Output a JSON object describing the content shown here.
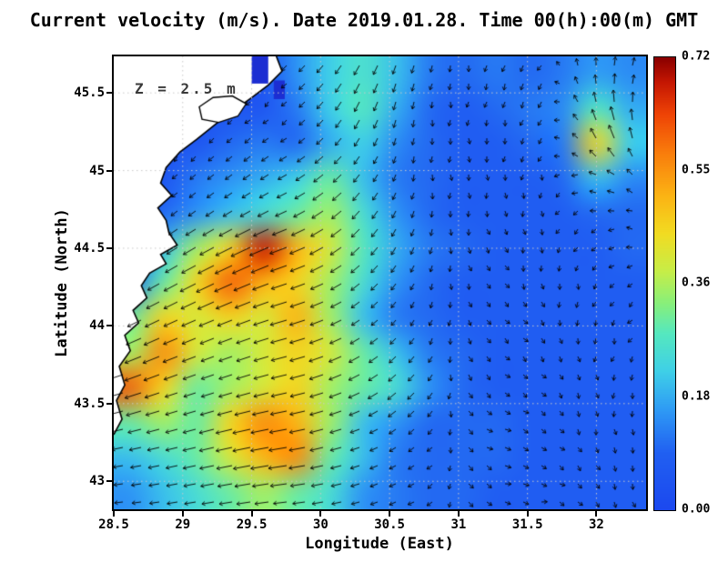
{
  "chart_data": {
    "type": "heatmap",
    "overlay": "quiver",
    "title": "Current velocity (m/s). Date 2019.01.28. Time 00(h):00(m) GMT",
    "xlabel": "Longitude (East)",
    "ylabel": "Latitude (North)",
    "units": "m/s",
    "depth_annotation": "Z = 2.5 m",
    "xlim": [
      28.5,
      32.36
    ],
    "ylim": [
      42.82,
      45.735
    ],
    "x_ticks": [
      28.5,
      29,
      29.5,
      30,
      30.5,
      31,
      31.5,
      32
    ],
    "x_tick_labels": [
      "28.5",
      "29",
      "29.5",
      "30",
      "30.5",
      "31",
      "31.5",
      "32"
    ],
    "y_ticks": [
      43,
      43.5,
      44,
      44.5,
      45,
      45.5
    ],
    "y_tick_labels": [
      "43",
      "43.5",
      "44",
      "44.5",
      "45",
      "45.5"
    ],
    "colorbar": {
      "min": 0.0,
      "max": 0.72,
      "tick_labels": [
        "0.00",
        "0.18",
        "0.36",
        "0.55",
        "0.72"
      ]
    },
    "colormap_stops": [
      {
        "v": 0.0,
        "c": "#1c49ef"
      },
      {
        "v": 0.09,
        "c": "#2160f2"
      },
      {
        "v": 0.16,
        "c": "#2f9cf5"
      },
      {
        "v": 0.22,
        "c": "#3fd0e8"
      },
      {
        "v": 0.28,
        "c": "#55e8c0"
      },
      {
        "v": 0.33,
        "c": "#8af07a"
      },
      {
        "v": 0.38,
        "c": "#c8ee48"
      },
      {
        "v": 0.44,
        "c": "#f2dc22"
      },
      {
        "v": 0.5,
        "c": "#fcb414"
      },
      {
        "v": 0.57,
        "c": "#f97c0c"
      },
      {
        "v": 0.63,
        "c": "#ef4406"
      },
      {
        "v": 0.68,
        "c": "#c61803"
      },
      {
        "v": 0.72,
        "c": "#8b0000"
      }
    ],
    "grid": {
      "nx": 16,
      "ny": 13,
      "lon_min": 28.5,
      "lon_max": 32.36,
      "lat_top": 45.735,
      "lat_bottom": 42.82,
      "magnitude_rows": [
        [
          0.05,
          0.05,
          0.05,
          0.05,
          0.05,
          0.15,
          0.22,
          0.26,
          0.2,
          0.12,
          0.1,
          0.12,
          0.1,
          0.12,
          0.16,
          0.14
        ],
        [
          0.05,
          0.05,
          0.05,
          0.05,
          0.05,
          0.12,
          0.22,
          0.28,
          0.18,
          0.1,
          0.08,
          0.1,
          0.12,
          0.14,
          0.28,
          0.18
        ],
        [
          0.05,
          0.05,
          0.05,
          0.1,
          0.12,
          0.1,
          0.18,
          0.22,
          0.14,
          0.1,
          0.08,
          0.08,
          0.1,
          0.12,
          0.45,
          0.22
        ],
        [
          0.05,
          0.05,
          0.12,
          0.15,
          0.18,
          0.22,
          0.3,
          0.2,
          0.12,
          0.1,
          0.08,
          0.08,
          0.08,
          0.1,
          0.2,
          0.14
        ],
        [
          0.05,
          0.1,
          0.15,
          0.2,
          0.25,
          0.3,
          0.35,
          0.25,
          0.15,
          0.1,
          0.08,
          0.08,
          0.08,
          0.08,
          0.1,
          0.1
        ],
        [
          0.08,
          0.2,
          0.35,
          0.45,
          0.68,
          0.5,
          0.4,
          0.28,
          0.18,
          0.12,
          0.1,
          0.08,
          0.08,
          0.08,
          0.08,
          0.1
        ],
        [
          0.1,
          0.3,
          0.45,
          0.6,
          0.5,
          0.45,
          0.35,
          0.25,
          0.15,
          0.1,
          0.08,
          0.08,
          0.08,
          0.08,
          0.08,
          0.08
        ],
        [
          0.3,
          0.45,
          0.4,
          0.45,
          0.4,
          0.5,
          0.35,
          0.2,
          0.12,
          0.1,
          0.08,
          0.08,
          0.08,
          0.08,
          0.08,
          0.08
        ],
        [
          0.35,
          0.55,
          0.4,
          0.35,
          0.4,
          0.45,
          0.4,
          0.3,
          0.2,
          0.12,
          0.1,
          0.08,
          0.08,
          0.08,
          0.08,
          0.08
        ],
        [
          0.6,
          0.45,
          0.3,
          0.35,
          0.4,
          0.45,
          0.35,
          0.3,
          0.25,
          0.15,
          0.1,
          0.08,
          0.08,
          0.08,
          0.08,
          0.08
        ],
        [
          0.3,
          0.35,
          0.3,
          0.45,
          0.55,
          0.5,
          0.35,
          0.2,
          0.15,
          0.1,
          0.1,
          0.1,
          0.08,
          0.08,
          0.08,
          0.08
        ],
        [
          0.2,
          0.25,
          0.3,
          0.4,
          0.5,
          0.55,
          0.3,
          0.2,
          0.12,
          0.1,
          0.1,
          0.1,
          0.08,
          0.08,
          0.08,
          0.08
        ],
        [
          0.15,
          0.2,
          0.25,
          0.3,
          0.35,
          0.3,
          0.25,
          0.15,
          0.12,
          0.1,
          0.1,
          0.08,
          0.08,
          0.08,
          0.08,
          0.08
        ]
      ],
      "direction_deg_rows": [
        [
          240,
          240,
          240,
          235,
          230,
          225,
          230,
          240,
          250,
          255,
          260,
          250,
          240,
          100,
          80,
          70
        ],
        [
          235,
          235,
          235,
          230,
          225,
          220,
          230,
          245,
          255,
          260,
          265,
          255,
          245,
          120,
          90,
          75
        ],
        [
          230,
          230,
          230,
          225,
          220,
          215,
          225,
          240,
          255,
          265,
          270,
          260,
          250,
          140,
          110,
          90
        ],
        [
          225,
          225,
          222,
          218,
          215,
          210,
          220,
          235,
          250,
          265,
          275,
          270,
          260,
          180,
          150,
          120
        ],
        [
          220,
          220,
          218,
          214,
          210,
          205,
          215,
          230,
          245,
          260,
          280,
          280,
          270,
          210,
          180,
          150
        ],
        [
          215,
          215,
          212,
          208,
          205,
          200,
          210,
          225,
          240,
          255,
          285,
          290,
          280,
          240,
          210,
          180
        ],
        [
          210,
          210,
          208,
          205,
          202,
          198,
          205,
          220,
          235,
          250,
          290,
          300,
          290,
          260,
          230,
          200
        ],
        [
          205,
          206,
          204,
          202,
          200,
          196,
          202,
          215,
          230,
          245,
          295,
          310,
          300,
          270,
          250,
          220
        ],
        [
          200,
          202,
          201,
          200,
          198,
          194,
          200,
          210,
          225,
          240,
          300,
          320,
          310,
          280,
          260,
          240
        ],
        [
          196,
          198,
          198,
          197,
          195,
          192,
          198,
          205,
          220,
          235,
          305,
          330,
          320,
          290,
          270,
          250
        ],
        [
          192,
          194,
          195,
          194,
          192,
          190,
          195,
          200,
          215,
          230,
          310,
          340,
          330,
          300,
          280,
          260
        ],
        [
          188,
          190,
          192,
          191,
          190,
          188,
          192,
          198,
          210,
          225,
          315,
          350,
          340,
          310,
          290,
          270
        ],
        [
          185,
          187,
          189,
          189,
          188,
          186,
          190,
          195,
          205,
          220,
          320,
          355,
          350,
          320,
          300,
          280
        ]
      ]
    },
    "coastline": [
      [
        29.66,
        45.78
      ],
      [
        29.72,
        45.64
      ],
      [
        29.62,
        45.55
      ],
      [
        29.5,
        45.47
      ],
      [
        29.36,
        45.38
      ],
      [
        29.24,
        45.3
      ],
      [
        29.1,
        45.2
      ],
      [
        28.98,
        45.12
      ],
      [
        28.88,
        45.02
      ],
      [
        28.84,
        44.92
      ],
      [
        28.92,
        44.84
      ],
      [
        28.82,
        44.76
      ],
      [
        28.88,
        44.68
      ],
      [
        28.9,
        44.6
      ],
      [
        28.96,
        44.52
      ],
      [
        28.84,
        44.46
      ],
      [
        28.88,
        44.4
      ],
      [
        28.76,
        44.34
      ],
      [
        28.7,
        44.26
      ],
      [
        28.74,
        44.18
      ],
      [
        28.64,
        44.1
      ],
      [
        28.68,
        44.02
      ],
      [
        28.58,
        43.94
      ],
      [
        28.62,
        43.84
      ],
      [
        28.54,
        43.74
      ],
      [
        28.58,
        43.62
      ],
      [
        28.52,
        43.52
      ],
      [
        28.56,
        43.4
      ],
      [
        28.5,
        43.3
      ]
    ],
    "lagoon_outline": [
      [
        29.12,
        45.41
      ],
      [
        29.22,
        45.47
      ],
      [
        29.36,
        45.48
      ],
      [
        29.46,
        45.43
      ],
      [
        29.4,
        45.35
      ],
      [
        29.26,
        45.31
      ],
      [
        29.14,
        45.33
      ]
    ],
    "inlets": [
      {
        "lon_min": 29.5,
        "lon_max": 29.62,
        "lat_min": 45.56,
        "lat_max": 45.78,
        "color": "#1c2ed2"
      },
      {
        "lon_min": 29.66,
        "lon_max": 29.74,
        "lat_min": 45.46,
        "lat_max": 45.58,
        "color": "#1c2ed2"
      }
    ],
    "land_color": "#ffffff",
    "coast_color": "#000000",
    "arrow_color": "#000000",
    "gridline_color": "#c9c9c9"
  }
}
